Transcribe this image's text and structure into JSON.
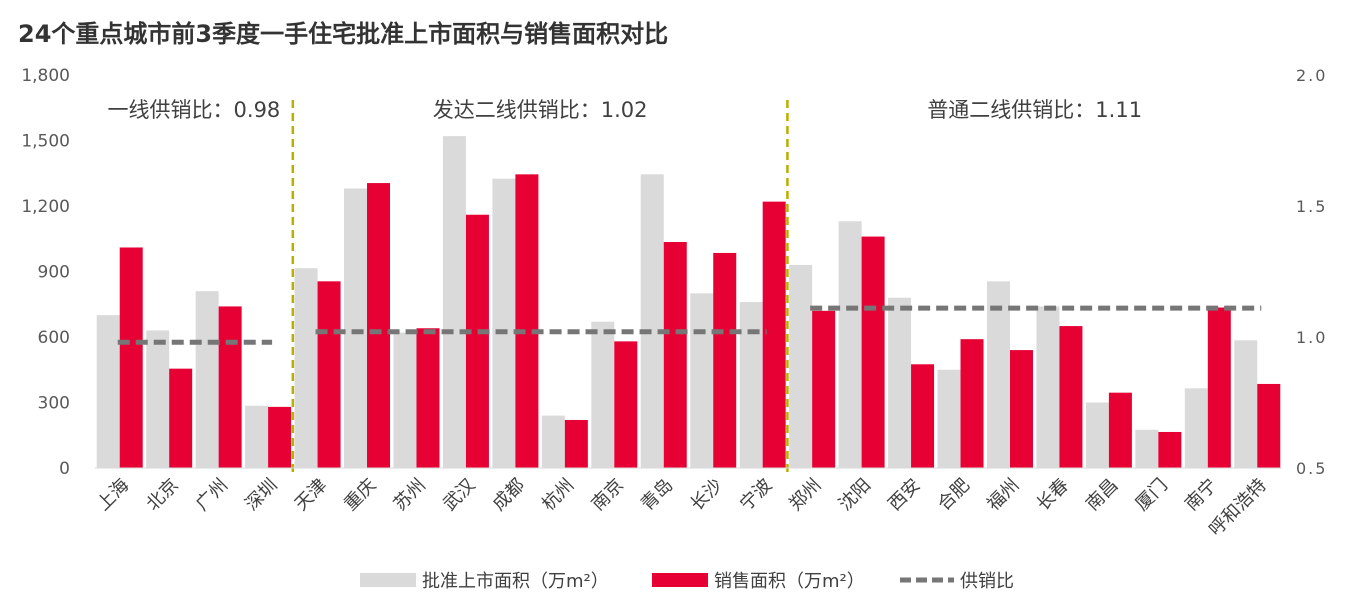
{
  "chart_data": {
    "type": "bar",
    "title": "24个重点城市前3季度一手住宅批准上市面积与销售面积对比",
    "categories": [
      "上海",
      "北京",
      "广州",
      "深圳",
      "天津",
      "重庆",
      "苏州",
      "武汉",
      "成都",
      "杭州",
      "南京",
      "青岛",
      "长沙",
      "宁波",
      "郑州",
      "沈阳",
      "西安",
      "合肥",
      "福州",
      "长春",
      "南昌",
      "厦门",
      "南宁",
      "呼和浩特"
    ],
    "series": [
      {
        "name": "批准上市面积（万m²）",
        "color": "#dadadb",
        "axis": "left",
        "values": [
          700,
          630,
          810,
          285,
          915,
          1280,
          620,
          1520,
          1325,
          240,
          670,
          1345,
          800,
          760,
          930,
          1130,
          780,
          450,
          855,
          740,
          300,
          175,
          365,
          585
        ]
      },
      {
        "name": "销售面积（万m²）",
        "color": "#e60033",
        "axis": "left",
        "values": [
          1010,
          455,
          740,
          280,
          855,
          1305,
          640,
          1160,
          1345,
          220,
          580,
          1035,
          985,
          1220,
          720,
          1060,
          475,
          590,
          540,
          650,
          345,
          165,
          735,
          385
        ]
      }
    ],
    "ratio_series": {
      "name": "供销比",
      "color": "#767676",
      "axis": "right",
      "segments": [
        {
          "label": "一线供销比：0.98",
          "from": "上海",
          "to": "深圳",
          "value": 0.98
        },
        {
          "label": "发达二线供销比：1.02",
          "from": "天津",
          "to": "宁波",
          "value": 1.02
        },
        {
          "label": "普通二线供销比：1.11",
          "from": "郑州",
          "to": "呼和浩特",
          "value": 1.11
        }
      ]
    },
    "y_left": {
      "ticks": [
        "0",
        "300",
        "600",
        "900",
        "1,200",
        "1,500",
        "1,800"
      ],
      "lim": [
        0,
        1800
      ]
    },
    "y_right": {
      "ticks": [
        "0.5",
        "1.0",
        "1.5",
        "2.0"
      ],
      "lim": [
        0.5,
        2.0
      ]
    },
    "group_dividers": {
      "after": [
        "深圳",
        "宁波"
      ],
      "color": "#b8b000"
    },
    "legend": {
      "items": [
        {
          "label": "批准上市面积（万m²）",
          "marker": "bar",
          "color": "#dadadb"
        },
        {
          "label": "销售面积（万m²）",
          "marker": "bar",
          "color": "#e60033"
        },
        {
          "label": "供销比",
          "marker": "dashed-line",
          "color": "#767676"
        }
      ],
      "position": "bottom"
    },
    "grid": false
  }
}
